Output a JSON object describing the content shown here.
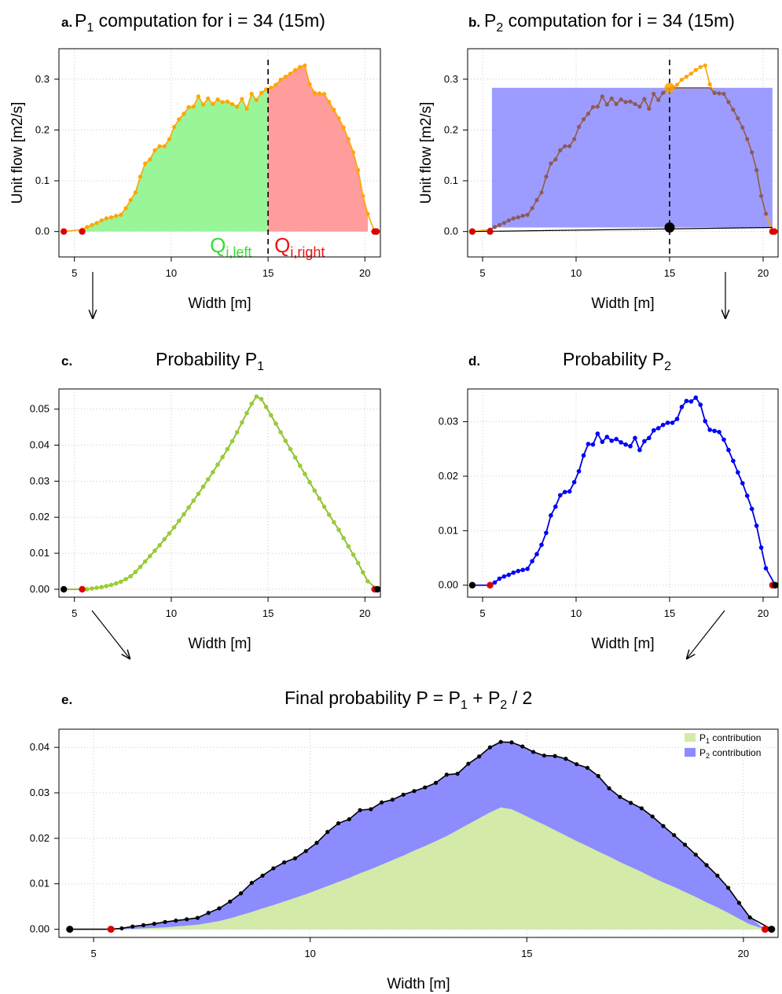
{
  "chart_data": [
    {
      "id": "a",
      "panel_letter": "a.",
      "title_parts": [
        "P",
        "1",
        " computation for i = 34 (15m)"
      ],
      "type": "area",
      "xlabel": "Width [m]",
      "ylabel": "Unit flow [m2/s]",
      "xlim": [
        4.2,
        20.8
      ],
      "ylim": [
        -0.05,
        0.36
      ],
      "xticks": [
        5,
        10,
        15,
        20
      ],
      "xtick_labels": [
        "5",
        "10",
        "15",
        "20"
      ],
      "yticks": [
        0.0,
        0.1,
        0.2,
        0.3
      ],
      "ytick_labels": [
        "0.0",
        "0.1",
        "0.2",
        "0.3"
      ],
      "grid": true,
      "split_x": 15,
      "region_labels": [
        {
          "main": "Q",
          "sub": "i,left",
          "color": "#33dd33"
        },
        {
          "main": "Q",
          "sub": "i,right",
          "color": "#ee1111"
        }
      ],
      "colors": {
        "left_fill": "#98f598",
        "right_fill": "#ff9c9c",
        "line": "#ffa500",
        "point": "#ffa500",
        "end_point": "#dd0000"
      },
      "x": [
        5.4,
        5.65,
        5.9,
        6.15,
        6.4,
        6.65,
        6.9,
        7.15,
        7.4,
        7.65,
        7.9,
        8.15,
        8.4,
        8.65,
        8.9,
        9.15,
        9.4,
        9.65,
        9.9,
        10.15,
        10.4,
        10.65,
        10.9,
        11.15,
        11.4,
        11.65,
        11.9,
        12.15,
        12.4,
        12.65,
        12.9,
        13.15,
        13.4,
        13.65,
        13.9,
        14.15,
        14.4,
        14.65,
        14.9,
        15.15,
        15.4,
        15.65,
        15.9,
        16.15,
        16.4,
        16.65,
        16.9,
        17.15,
        17.4,
        17.65,
        17.9,
        18.15,
        18.4,
        18.65,
        18.9,
        19.15,
        19.4,
        19.65,
        19.9,
        20.15
      ],
      "values": [
        0.004,
        0.009,
        0.013,
        0.017,
        0.022,
        0.026,
        0.028,
        0.031,
        0.033,
        0.046,
        0.062,
        0.077,
        0.108,
        0.134,
        0.142,
        0.16,
        0.168,
        0.168,
        0.182,
        0.206,
        0.221,
        0.232,
        0.245,
        0.246,
        0.266,
        0.25,
        0.262,
        0.251,
        0.26,
        0.255,
        0.256,
        0.251,
        0.246,
        0.261,
        0.242,
        0.271,
        0.259,
        0.273,
        0.28,
        0.283,
        0.289,
        0.299,
        0.305,
        0.311,
        0.318,
        0.324,
        0.327,
        0.29,
        0.273,
        0.272,
        0.271,
        0.255,
        0.24,
        0.223,
        0.205,
        0.182,
        0.156,
        0.121,
        0.07,
        0.035
      ],
      "end_points": [
        [
          4.45,
          0.0
        ],
        [
          5.4,
          0.0
        ],
        [
          20.5,
          0.0
        ],
        [
          20.6,
          0.0
        ]
      ]
    },
    {
      "id": "b",
      "panel_letter": "b.",
      "title_parts": [
        "P",
        "2",
        " computation for i = 34 (15m)"
      ],
      "type": "line",
      "xlabel": "Width [m]",
      "ylabel": "Unit flow [m2/s]",
      "xlim": [
        4.2,
        20.8
      ],
      "ylim": [
        -0.05,
        0.36
      ],
      "xticks": [
        5,
        10,
        15,
        20
      ],
      "xtick_labels": [
        "5",
        "10",
        "15",
        "20"
      ],
      "yticks": [
        0.0,
        0.1,
        0.2,
        0.3
      ],
      "ytick_labels": [
        "0.0",
        "0.1",
        "0.2",
        "0.3"
      ],
      "grid": true,
      "split_x": 15,
      "highlight_point": [
        15,
        0.283
      ],
      "baseline_point": [
        15,
        0.008
      ],
      "rect": {
        "x0": 5.5,
        "x1": 20.5,
        "y0": 0.008,
        "y1": 0.283
      },
      "colors": {
        "rect": "#8080ff",
        "line_in": "#8b5a5a",
        "line_out": "#ffa500",
        "highlight": "#ffa500",
        "end_point": "#dd0000"
      }
    },
    {
      "id": "c",
      "panel_letter": "c.",
      "title_parts": [
        "Probability P",
        "1",
        ""
      ],
      "type": "line",
      "xlabel": "Width [m]",
      "ylabel": "",
      "xlim": [
        4.2,
        20.8
      ],
      "ylim": [
        -0.0022,
        0.0556
      ],
      "xticks": [
        5,
        10,
        15,
        20
      ],
      "xtick_labels": [
        "5",
        "10",
        "15",
        "20"
      ],
      "yticks": [
        0.0,
        0.01,
        0.02,
        0.03,
        0.04,
        0.05
      ],
      "ytick_labels": [
        "0.00",
        "0.01",
        "0.02",
        "0.03",
        "0.04",
        "0.05"
      ],
      "grid": true,
      "colors": {
        "line": "#8ab82e",
        "point": "#9acd32",
        "end_point": "#dd0000",
        "outer_point": "#000000"
      },
      "x": [
        5.4,
        5.65,
        5.9,
        6.15,
        6.4,
        6.65,
        6.9,
        7.15,
        7.4,
        7.65,
        7.9,
        8.15,
        8.4,
        8.65,
        8.9,
        9.15,
        9.4,
        9.65,
        9.9,
        10.15,
        10.4,
        10.65,
        10.9,
        11.15,
        11.4,
        11.65,
        11.9,
        12.15,
        12.4,
        12.65,
        12.9,
        13.15,
        13.4,
        13.65,
        13.9,
        14.15,
        14.4,
        14.65,
        14.9,
        15.15,
        15.4,
        15.65,
        15.9,
        16.15,
        16.4,
        16.65,
        16.9,
        17.15,
        17.4,
        17.65,
        17.9,
        18.15,
        18.4,
        18.65,
        18.9,
        19.15,
        19.4,
        19.65,
        19.9,
        20.15
      ],
      "values": [
        0.0,
        0.0,
        0.0002,
        0.0004,
        0.0006,
        0.0009,
        0.0012,
        0.0016,
        0.0021,
        0.0028,
        0.0036,
        0.0048,
        0.0062,
        0.0077,
        0.0092,
        0.0107,
        0.0122,
        0.0139,
        0.0155,
        0.0172,
        0.019,
        0.0208,
        0.0227,
        0.0246,
        0.0265,
        0.0285,
        0.0305,
        0.0325,
        0.0346,
        0.0367,
        0.0389,
        0.0411,
        0.0436,
        0.0463,
        0.0489,
        0.0515,
        0.0535,
        0.0528,
        0.0506,
        0.0483,
        0.046,
        0.0436,
        0.0412,
        0.0389,
        0.0366,
        0.0343,
        0.032,
        0.0297,
        0.0274,
        0.0252,
        0.0229,
        0.0207,
        0.0186,
        0.0165,
        0.0142,
        0.0119,
        0.0096,
        0.0073,
        0.0047,
        0.0022
      ],
      "end_points": [
        [
          4.45,
          0.0
        ],
        [
          5.4,
          0.0
        ],
        [
          20.5,
          0.0
        ],
        [
          20.65,
          0.0
        ]
      ]
    },
    {
      "id": "d",
      "panel_letter": "d.",
      "title_parts": [
        "Probability P",
        "2",
        ""
      ],
      "type": "line",
      "xlabel": "Width [m]",
      "ylabel": "",
      "xlim": [
        4.2,
        20.8
      ],
      "ylim": [
        -0.0022,
        0.036
      ],
      "xticks": [
        5,
        10,
        15,
        20
      ],
      "xtick_labels": [
        "5",
        "10",
        "15",
        "20"
      ],
      "yticks": [
        0.0,
        0.01,
        0.02,
        0.03
      ],
      "ytick_labels": [
        "0.00",
        "0.01",
        "0.02",
        "0.03"
      ],
      "grid": true,
      "colors": {
        "line": "#0000dd",
        "point": "#0000ff",
        "end_point": "#dd0000",
        "outer_point": "#000000"
      },
      "x": [
        5.4,
        5.65,
        5.9,
        6.15,
        6.4,
        6.65,
        6.9,
        7.15,
        7.4,
        7.65,
        7.9,
        8.15,
        8.4,
        8.65,
        8.9,
        9.15,
        9.4,
        9.65,
        9.9,
        10.15,
        10.4,
        10.65,
        10.9,
        11.15,
        11.4,
        11.65,
        11.9,
        12.15,
        12.4,
        12.65,
        12.9,
        13.15,
        13.4,
        13.65,
        13.9,
        14.15,
        14.4,
        14.65,
        14.9,
        15.15,
        15.4,
        15.65,
        15.9,
        16.15,
        16.4,
        16.65,
        16.9,
        17.15,
        17.4,
        17.65,
        17.9,
        18.15,
        18.4,
        18.65,
        18.9,
        19.15,
        19.4,
        19.65,
        19.9,
        20.15
      ],
      "values": [
        0.0,
        0.0005,
        0.0012,
        0.0016,
        0.0019,
        0.0023,
        0.0026,
        0.0028,
        0.003,
        0.0044,
        0.0057,
        0.0074,
        0.0096,
        0.0128,
        0.0144,
        0.0165,
        0.0171,
        0.0172,
        0.0189,
        0.0209,
        0.0238,
        0.0259,
        0.0258,
        0.0278,
        0.0263,
        0.0272,
        0.0265,
        0.0268,
        0.0262,
        0.0258,
        0.0255,
        0.027,
        0.0248,
        0.0264,
        0.027,
        0.0284,
        0.0288,
        0.0294,
        0.0298,
        0.0298,
        0.0305,
        0.0327,
        0.0338,
        0.0337,
        0.0344,
        0.0331,
        0.0301,
        0.0285,
        0.0283,
        0.0281,
        0.0267,
        0.0248,
        0.0228,
        0.0207,
        0.0187,
        0.0164,
        0.014,
        0.0109,
        0.0069,
        0.0031
      ],
      "end_points": [
        [
          4.45,
          0.0
        ],
        [
          5.4,
          0.0
        ],
        [
          20.5,
          0.0
        ],
        [
          20.65,
          0.0
        ]
      ]
    },
    {
      "id": "e",
      "panel_letter": "e.",
      "title_parts": [
        "Final probability P = P",
        "1",
        " + P",
        "2",
        " / 2"
      ],
      "type": "area",
      "xlabel": "Width [m]",
      "ylabel": "",
      "xlim": [
        4.2,
        20.8
      ],
      "ylim": [
        -0.0018,
        0.044
      ],
      "xticks": [
        5,
        10,
        15,
        20
      ],
      "xtick_labels": [
        "5",
        "10",
        "15",
        "20"
      ],
      "yticks": [
        0.0,
        0.01,
        0.02,
        0.03,
        0.04
      ],
      "ytick_labels": [
        "0.00",
        "0.01",
        "0.02",
        "0.03",
        "0.04"
      ],
      "grid": true,
      "legend_placement": "top-right",
      "legend": [
        {
          "main": "P",
          "sub": "1",
          "rest": " contribution",
          "color": "#d4eaa8"
        },
        {
          "main": "P",
          "sub": "2",
          "rest": " contribution",
          "color": "#8c8cff"
        }
      ],
      "colors": {
        "p1_fill": "#d4eaa8",
        "p2_fill": "#8c8cff",
        "line": "#000000",
        "point": "#000000",
        "end_point": "#dd0000"
      },
      "x": [
        5.4,
        5.65,
        5.9,
        6.15,
        6.4,
        6.65,
        6.9,
        7.15,
        7.4,
        7.65,
        7.9,
        8.15,
        8.4,
        8.65,
        8.9,
        9.15,
        9.4,
        9.65,
        9.9,
        10.15,
        10.4,
        10.65,
        10.9,
        11.15,
        11.4,
        11.65,
        11.9,
        12.15,
        12.4,
        12.65,
        12.9,
        13.15,
        13.4,
        13.65,
        13.9,
        14.15,
        14.4,
        14.65,
        14.9,
        15.15,
        15.4,
        15.65,
        15.9,
        16.15,
        16.4,
        16.65,
        16.9,
        17.15,
        17.4,
        17.65,
        17.9,
        18.15,
        18.4,
        18.65,
        18.9,
        19.15,
        19.4,
        19.65,
        19.9,
        20.15
      ],
      "values": [
        0.0,
        0.0002,
        0.0006,
        0.0009,
        0.0012,
        0.0016,
        0.0019,
        0.0022,
        0.0025,
        0.0036,
        0.0046,
        0.0061,
        0.0079,
        0.0102,
        0.0118,
        0.0134,
        0.0147,
        0.0156,
        0.0172,
        0.019,
        0.0214,
        0.0233,
        0.0242,
        0.0262,
        0.0264,
        0.0279,
        0.0285,
        0.0296,
        0.0304,
        0.0312,
        0.0322,
        0.034,
        0.0342,
        0.0364,
        0.038,
        0.04,
        0.0412,
        0.0411,
        0.0402,
        0.039,
        0.0382,
        0.0381,
        0.0375,
        0.0363,
        0.0355,
        0.0337,
        0.031,
        0.0291,
        0.0278,
        0.0266,
        0.0248,
        0.0227,
        0.0207,
        0.0186,
        0.0164,
        0.0141,
        0.0118,
        0.0091,
        0.0058,
        0.0026
      ],
      "p1_values": [
        0.0,
        0.0,
        0.0001,
        0.0002,
        0.0003,
        0.0004,
        0.0006,
        0.0008,
        0.001,
        0.0014,
        0.0018,
        0.0024,
        0.0031,
        0.0038,
        0.0046,
        0.0053,
        0.0061,
        0.0069,
        0.0077,
        0.0086,
        0.0095,
        0.0104,
        0.0113,
        0.0123,
        0.0132,
        0.0142,
        0.0152,
        0.0162,
        0.0173,
        0.0183,
        0.0194,
        0.0205,
        0.0218,
        0.0231,
        0.0244,
        0.0257,
        0.0268,
        0.0264,
        0.0253,
        0.0241,
        0.023,
        0.0218,
        0.0206,
        0.0194,
        0.0183,
        0.0171,
        0.016,
        0.0148,
        0.0137,
        0.0126,
        0.0114,
        0.0103,
        0.0093,
        0.0082,
        0.0071,
        0.0059,
        0.0048,
        0.0036,
        0.0023,
        0.0011
      ],
      "end_points": [
        [
          4.45,
          0.0
        ],
        [
          5.4,
          0.0
        ],
        [
          20.5,
          0.0
        ],
        [
          20.65,
          0.0
        ]
      ]
    }
  ]
}
